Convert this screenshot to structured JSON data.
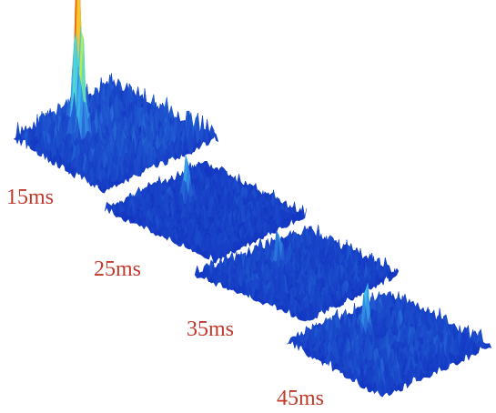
{
  "chart_data": [
    {
      "type": "surface",
      "label": "15ms",
      "peaks": [
        {
          "u": 0.46,
          "v": 0.2,
          "height": 1.0
        },
        {
          "u": 0.33,
          "v": 0.38,
          "height": 0.55
        }
      ],
      "noise": 0.11
    },
    {
      "type": "surface",
      "label": "25ms",
      "peaks": [
        {
          "u": 0.5,
          "v": 0.3,
          "height": 0.28
        }
      ],
      "noise": 0.07
    },
    {
      "type": "surface",
      "label": "35ms",
      "peaks": [
        {
          "u": 0.47,
          "v": 0.3,
          "height": 0.2
        }
      ],
      "noise": 0.08
    },
    {
      "type": "surface",
      "label": "45ms",
      "peaks": [
        {
          "u": 0.47,
          "v": 0.3,
          "height": 0.25
        }
      ],
      "noise": 0.09
    }
  ],
  "colors": {
    "label": "#c0392b",
    "colormap": [
      "#00007f",
      "#1030c0",
      "#2f7fe0",
      "#40c8f0",
      "#90f070",
      "#f8e030",
      "#f08020",
      "#c81818",
      "#800000"
    ]
  }
}
